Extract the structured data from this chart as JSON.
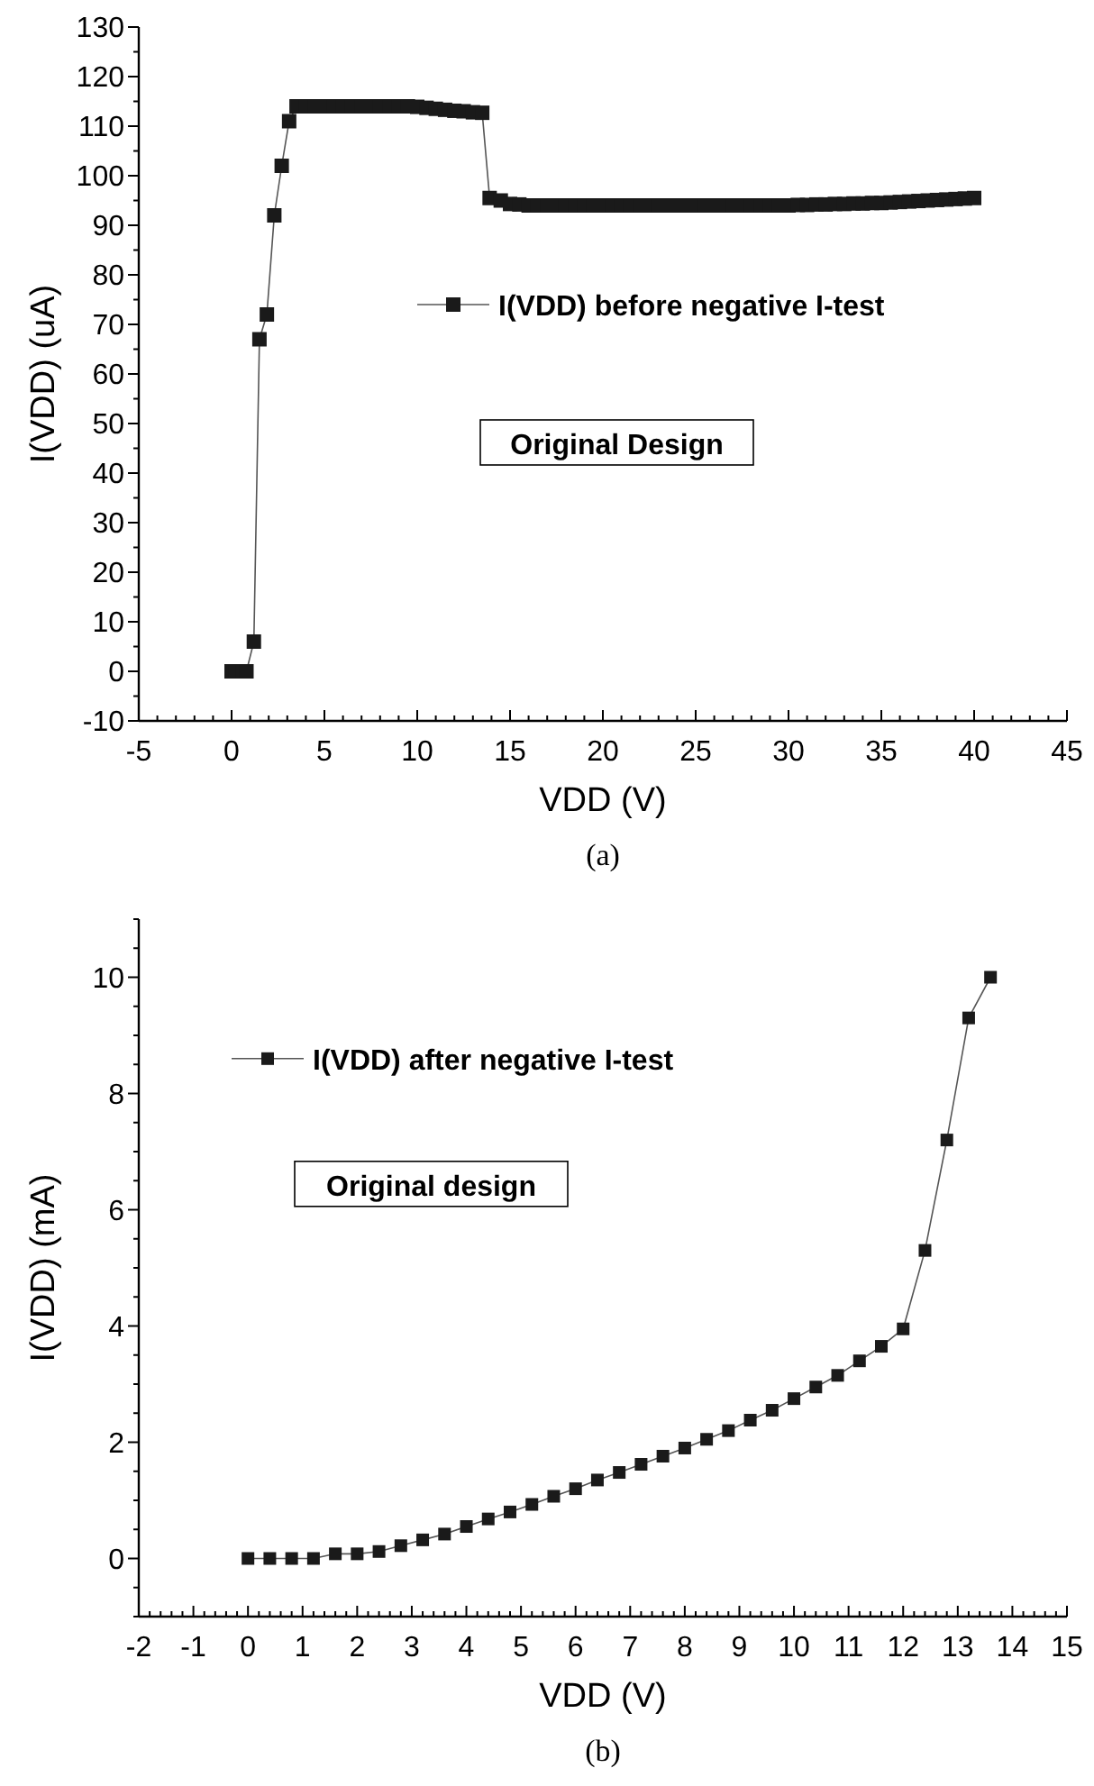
{
  "chart_data": [
    {
      "type": "line",
      "xlabel": "VDD (V)",
      "ylabel": "I(VDD) (uA)",
      "marker": "square",
      "line_style": "solid",
      "legend": "center",
      "annotations": [
        "Original Design",
        "(a)"
      ],
      "xlim": [
        -5,
        45
      ],
      "ylim": [
        -10,
        130
      ],
      "xticks": [
        -5,
        {
          "value": -4,
          "label": null
        },
        {
          "value": -3,
          "label": null
        },
        {
          "value": -2,
          "label": null
        },
        {
          "value": -1,
          "label": null
        },
        0,
        {
          "value": 1,
          "label": null
        },
        {
          "value": 2,
          "label": null
        },
        {
          "value": 3,
          "label": null
        },
        {
          "value": 4,
          "label": null
        },
        5,
        {
          "value": 6,
          "label": null
        },
        {
          "value": 7,
          "label": null
        },
        {
          "value": 8,
          "label": null
        },
        {
          "value": 9,
          "label": null
        },
        10,
        {
          "value": 11,
          "label": null
        },
        {
          "value": 12,
          "label": null
        },
        {
          "value": 13,
          "label": null
        },
        {
          "value": 14,
          "label": null
        },
        15,
        {
          "value": 16,
          "label": null
        },
        {
          "value": 17,
          "label": null
        },
        {
          "value": 18,
          "label": null
        },
        {
          "value": 19,
          "label": null
        },
        20,
        {
          "value": 21,
          "label": null
        },
        {
          "value": 22,
          "label": null
        },
        {
          "value": 23,
          "label": null
        },
        {
          "value": 24,
          "label": null
        },
        25,
        {
          "value": 26,
          "label": null
        },
        {
          "value": 27,
          "label": null
        },
        {
          "value": 28,
          "label": null
        },
        {
          "value": 29,
          "label": null
        },
        30,
        {
          "value": 31,
          "label": null
        },
        {
          "value": 32,
          "label": null
        },
        {
          "value": 33,
          "label": null
        },
        {
          "value": 34,
          "label": null
        },
        35,
        {
          "value": 36,
          "label": null
        },
        {
          "value": 37,
          "label": null
        },
        {
          "value": 38,
          "label": null
        },
        {
          "value": 39,
          "label": null
        },
        40,
        {
          "value": 41,
          "label": null
        },
        {
          "value": 42,
          "label": null
        },
        {
          "value": 43,
          "label": null
        },
        {
          "value": 44,
          "label": null
        },
        45
      ],
      "yticks": [
        -10,
        {
          "value": -5,
          "label": null
        },
        0,
        {
          "value": 5,
          "label": null
        },
        10,
        {
          "value": 15,
          "label": null
        },
        20,
        {
          "value": 25,
          "label": null
        },
        30,
        {
          "value": 35,
          "label": null
        },
        40,
        {
          "value": 45,
          "label": null
        },
        50,
        {
          "value": 55,
          "label": null
        },
        60,
        {
          "value": 65,
          "label": null
        },
        70,
        {
          "value": 75,
          "label": null
        },
        80,
        {
          "value": 85,
          "label": null
        },
        90,
        {
          "value": 95,
          "label": null
        },
        100,
        {
          "value": 105,
          "label": null
        },
        110,
        {
          "value": 115,
          "label": null
        },
        120,
        {
          "value": 125,
          "label": null
        },
        130
      ],
      "series": [
        {
          "name": "I(VDD) before negative I-test",
          "color": "#1a1a1a",
          "x": [
            0,
            0.2,
            0.4,
            0.6,
            0.8,
            1.2,
            1.5,
            1.9,
            2.3,
            2.7,
            3.1,
            3.5,
            4,
            4.5,
            5,
            5.5,
            6,
            6.5,
            7,
            7.5,
            8,
            8.5,
            9,
            9.5,
            10,
            10.5,
            11,
            11.5,
            12,
            12.5,
            13,
            13.5,
            13.9,
            14.5,
            15,
            15.5,
            16,
            16.5,
            17,
            17.5,
            18,
            18.5,
            19,
            19.5,
            20,
            20.5,
            21,
            21.5,
            22,
            22.5,
            23,
            23.5,
            24,
            24.5,
            25,
            25.5,
            26,
            26.5,
            27,
            27.5,
            28,
            28.5,
            29,
            29.5,
            30,
            30.5,
            31,
            31.5,
            32,
            32.5,
            33,
            33.5,
            34,
            34.5,
            35,
            35.5,
            36,
            36.5,
            37,
            37.5,
            38,
            38.5,
            39,
            39.5,
            40
          ],
          "values": [
            0,
            0,
            0,
            0,
            0,
            6,
            67,
            72,
            92,
            102,
            111,
            114,
            114,
            114,
            114,
            114,
            114,
            114,
            114,
            114,
            114,
            114,
            114,
            114,
            113.9,
            113.7,
            113.5,
            113.3,
            113.1,
            113,
            112.8,
            112.7,
            95.5,
            95,
            94.3,
            94.2,
            94,
            94,
            94,
            94,
            94,
            94,
            94,
            94,
            94,
            94,
            94,
            94,
            94,
            94,
            94,
            94,
            94,
            94,
            94,
            94,
            94,
            94,
            94,
            94,
            94,
            94,
            94,
            94,
            94,
            94.1,
            94.1,
            94.2,
            94.2,
            94.3,
            94.3,
            94.4,
            94.4,
            94.5,
            94.5,
            94.6,
            94.7,
            94.8,
            94.9,
            95,
            95.1,
            95.2,
            95.3,
            95.4,
            95.5
          ]
        }
      ]
    },
    {
      "type": "line",
      "xlabel": "VDD (V)",
      "ylabel": "I(VDD) (mA)",
      "marker": "square",
      "line_style": "solid",
      "legend": "top left",
      "annotations": [
        "Original design",
        "(b)"
      ],
      "xlim": [
        -2,
        15
      ],
      "ylim": [
        -1,
        11
      ],
      "xticks": [
        -2,
        {
          "value": -1.8,
          "label": null
        },
        {
          "value": -1.6,
          "label": null
        },
        {
          "value": -1.4,
          "label": null
        },
        {
          "value": -1.2,
          "label": null
        },
        -1,
        {
          "value": -0.8,
          "label": null
        },
        {
          "value": -0.6,
          "label": null
        },
        {
          "value": -0.4,
          "label": null
        },
        {
          "value": -0.2,
          "label": null
        },
        0,
        {
          "value": 0.2,
          "label": null
        },
        {
          "value": 0.4,
          "label": null
        },
        {
          "value": 0.6,
          "label": null
        },
        {
          "value": 0.8,
          "label": null
        },
        1,
        {
          "value": 1.2,
          "label": null
        },
        {
          "value": 1.4,
          "label": null
        },
        {
          "value": 1.6,
          "label": null
        },
        {
          "value": 1.8,
          "label": null
        },
        2,
        {
          "value": 2.2,
          "label": null
        },
        {
          "value": 2.4,
          "label": null
        },
        {
          "value": 2.6,
          "label": null
        },
        {
          "value": 2.8,
          "label": null
        },
        3,
        {
          "value": 3.2,
          "label": null
        },
        {
          "value": 3.4,
          "label": null
        },
        {
          "value": 3.6,
          "label": null
        },
        {
          "value": 3.8,
          "label": null
        },
        4,
        {
          "value": 4.2,
          "label": null
        },
        {
          "value": 4.4,
          "label": null
        },
        {
          "value": 4.6,
          "label": null
        },
        {
          "value": 4.8,
          "label": null
        },
        5,
        {
          "value": 5.2,
          "label": null
        },
        {
          "value": 5.4,
          "label": null
        },
        {
          "value": 5.6,
          "label": null
        },
        {
          "value": 5.8,
          "label": null
        },
        6,
        {
          "value": 6.2,
          "label": null
        },
        {
          "value": 6.4,
          "label": null
        },
        {
          "value": 6.6,
          "label": null
        },
        {
          "value": 6.8,
          "label": null
        },
        7,
        {
          "value": 7.2,
          "label": null
        },
        {
          "value": 7.4,
          "label": null
        },
        {
          "value": 7.6,
          "label": null
        },
        {
          "value": 7.8,
          "label": null
        },
        8,
        {
          "value": 8.2,
          "label": null
        },
        {
          "value": 8.4,
          "label": null
        },
        {
          "value": 8.6,
          "label": null
        },
        {
          "value": 8.8,
          "label": null
        },
        9,
        {
          "value": 9.2,
          "label": null
        },
        {
          "value": 9.4,
          "label": null
        },
        {
          "value": 9.6,
          "label": null
        },
        {
          "value": 9.8,
          "label": null
        },
        10,
        {
          "value": 10.2,
          "label": null
        },
        {
          "value": 10.4,
          "label": null
        },
        {
          "value": 10.6,
          "label": null
        },
        {
          "value": 10.8,
          "label": null
        },
        11,
        {
          "value": 11.2,
          "label": null
        },
        {
          "value": 11.4,
          "label": null
        },
        {
          "value": 11.6,
          "label": null
        },
        {
          "value": 11.8,
          "label": null
        },
        12,
        {
          "value": 12.2,
          "label": null
        },
        {
          "value": 12.4,
          "label": null
        },
        {
          "value": 12.6,
          "label": null
        },
        {
          "value": 12.8,
          "label": null
        },
        13,
        {
          "value": 13.2,
          "label": null
        },
        {
          "value": 13.4,
          "label": null
        },
        {
          "value": 13.6,
          "label": null
        },
        {
          "value": 13.8,
          "label": null
        },
        14,
        {
          "value": 14.2,
          "label": null
        },
        {
          "value": 14.4,
          "label": null
        },
        {
          "value": 14.6,
          "label": null
        },
        {
          "value": 14.8,
          "label": null
        },
        15
      ],
      "yticks": [
        {
          "value": -1,
          "label": null
        },
        {
          "value": -0.5,
          "label": null
        },
        0,
        {
          "value": 0.5,
          "label": null
        },
        {
          "value": 1,
          "label": null
        },
        {
          "value": 1.5,
          "label": null
        },
        2,
        {
          "value": 2.5,
          "label": null
        },
        {
          "value": 3,
          "label": null
        },
        {
          "value": 3.5,
          "label": null
        },
        4,
        {
          "value": 4.5,
          "label": null
        },
        {
          "value": 5,
          "label": null
        },
        {
          "value": 5.5,
          "label": null
        },
        6,
        {
          "value": 6.5,
          "label": null
        },
        {
          "value": 7,
          "label": null
        },
        {
          "value": 7.5,
          "label": null
        },
        8,
        {
          "value": 8.5,
          "label": null
        },
        {
          "value": 9,
          "label": null
        },
        {
          "value": 9.5,
          "label": null
        },
        10,
        {
          "value": 10.5,
          "label": null
        },
        {
          "value": 11,
          "label": null
        }
      ],
      "series": [
        {
          "name": "I(VDD) after negative I-test",
          "color": "#1a1a1a",
          "x": [
            0,
            0.4,
            0.8,
            1.2,
            1.6,
            2,
            2.4,
            2.8,
            3.2,
            3.6,
            4,
            4.4,
            4.8,
            5.2,
            5.6,
            6,
            6.4,
            6.8,
            7.2,
            7.6,
            8,
            8.4,
            8.8,
            9.2,
            9.6,
            10,
            10.4,
            10.8,
            11.2,
            11.6,
            12,
            12.4,
            12.8,
            13.2,
            13.6
          ],
          "values": [
            0,
            0,
            0,
            0,
            0.08,
            0.08,
            0.12,
            0.22,
            0.32,
            0.42,
            0.55,
            0.68,
            0.8,
            0.93,
            1.07,
            1.2,
            1.35,
            1.48,
            1.62,
            1.76,
            1.9,
            2.05,
            2.2,
            2.38,
            2.55,
            2.75,
            2.95,
            3.15,
            3.4,
            3.65,
            3.95,
            5.3,
            7.2,
            9.3,
            10
          ]
        }
      ]
    }
  ]
}
